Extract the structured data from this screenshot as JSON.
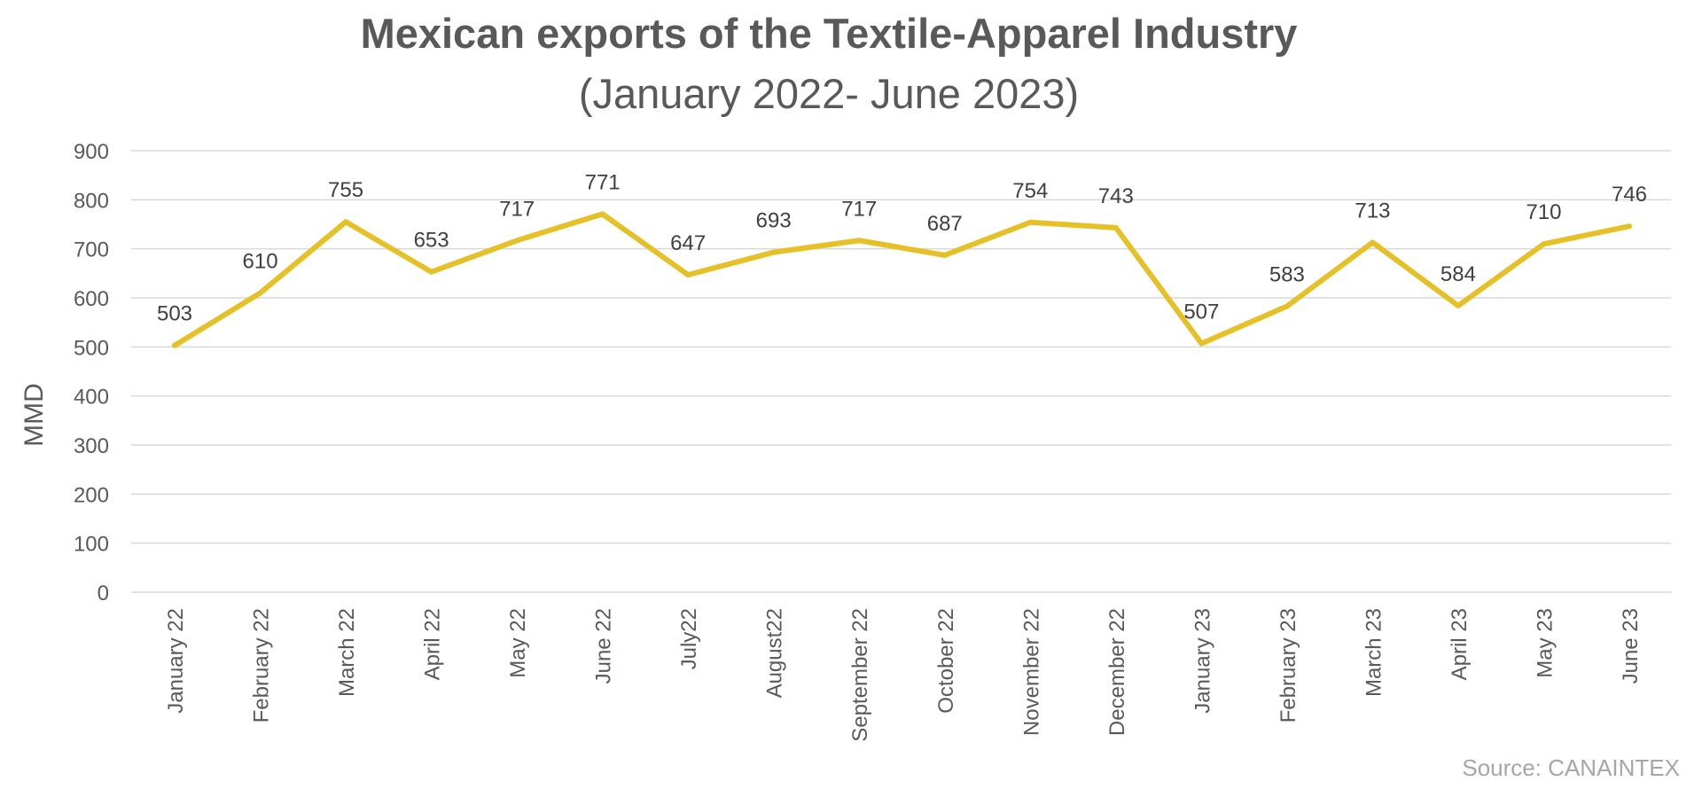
{
  "chart_data": {
    "type": "line",
    "title": "Mexican exports of the Textile-Apparel Industry",
    "subtitle": "(January 2022- June 2023)",
    "xlabel": "",
    "ylabel": "MMD",
    "ylim": [
      0,
      900
    ],
    "yticks": [
      0,
      100,
      200,
      300,
      400,
      500,
      600,
      700,
      800,
      900
    ],
    "grid": true,
    "categories": [
      "January 22",
      "February 22",
      "March 22",
      "April 22",
      "May 22",
      "June 22",
      "July22",
      "August22",
      "September 22",
      "October 22",
      "November 22",
      "December 22",
      "January 23",
      "February 23",
      "March 23",
      "April 23",
      "May 23",
      "June 23"
    ],
    "series": [
      {
        "values": [
          503,
          610,
          755,
          653,
          717,
          771,
          647,
          693,
          717,
          687,
          754,
          743,
          507,
          583,
          713,
          584,
          710,
          746
        ]
      }
    ],
    "line_color": "#e6c027"
  },
  "source": "Source: CANAINTEX"
}
